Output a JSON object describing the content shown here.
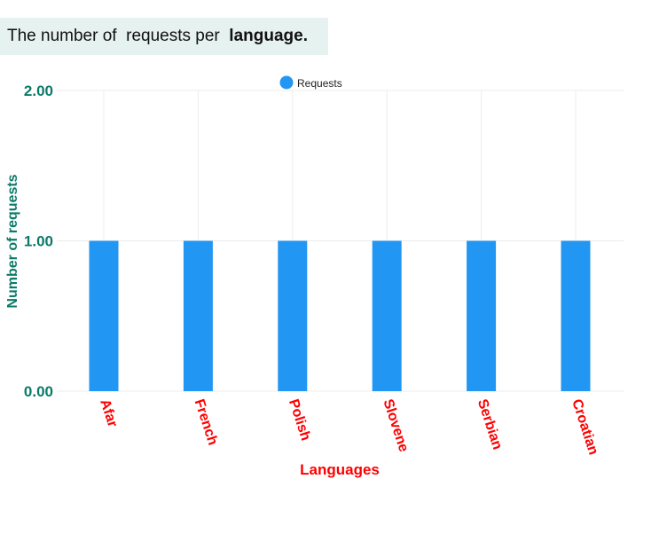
{
  "title": {
    "prefix": "The number of  requests per  ",
    "bold": "language."
  },
  "colors": {
    "bar": "#2196f3",
    "axis_text": "#0b7a68",
    "category_text": "#ff0000",
    "grid": "#ececec",
    "title_bg": "#e6f2ef"
  },
  "chart_data": {
    "type": "bar",
    "categories": [
      "Afar",
      "French",
      "Polish",
      "Slovene",
      "Serbian",
      "Croatian"
    ],
    "series": [
      {
        "name": "Requests",
        "values": [
          1,
          1,
          1,
          1,
          1,
          1
        ]
      }
    ],
    "xlabel": "Languages",
    "ylabel": "Number of requests",
    "ylim": [
      0,
      2
    ],
    "yticks": [
      "0.00",
      "1.00",
      "2.00"
    ],
    "grid": true,
    "legend": "top"
  }
}
